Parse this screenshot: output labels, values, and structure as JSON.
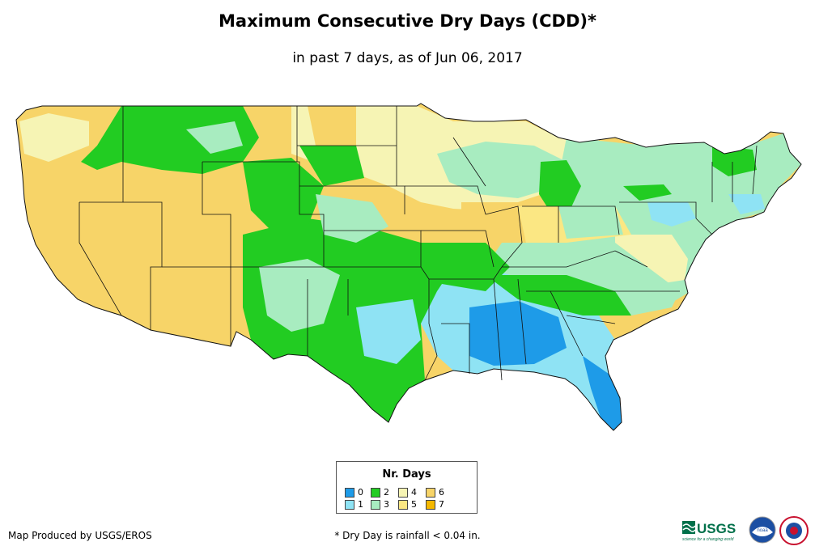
{
  "header": {
    "title": "Maximum Consecutive Dry Days (CDD)*",
    "subtitle": "in past 7 days, as of Jun 06, 2017"
  },
  "legend": {
    "title": "Nr. Days",
    "items": [
      {
        "label": "0",
        "color": "#1e9be8"
      },
      {
        "label": "1",
        "color": "#8fe3f4"
      },
      {
        "label": "2",
        "color": "#22cc22"
      },
      {
        "label": "3",
        "color": "#a8ecc0"
      },
      {
        "label": "4",
        "color": "#f6f4b4"
      },
      {
        "label": "5",
        "color": "#fbe783"
      },
      {
        "label": "6",
        "color": "#f7d468"
      },
      {
        "label": "7",
        "color": "#f5b800"
      }
    ]
  },
  "footer": {
    "credit": "Map Produced by USGS/EROS",
    "footnote": "* Dry Day is rainfall < 0.04 in.",
    "logos": [
      {
        "icon": "usgs-logo",
        "text": "USGS",
        "tagline": "science for a changing world"
      },
      {
        "icon": "noaa-logo",
        "text": "noaa"
      },
      {
        "icon": "nws-logo"
      }
    ]
  }
}
